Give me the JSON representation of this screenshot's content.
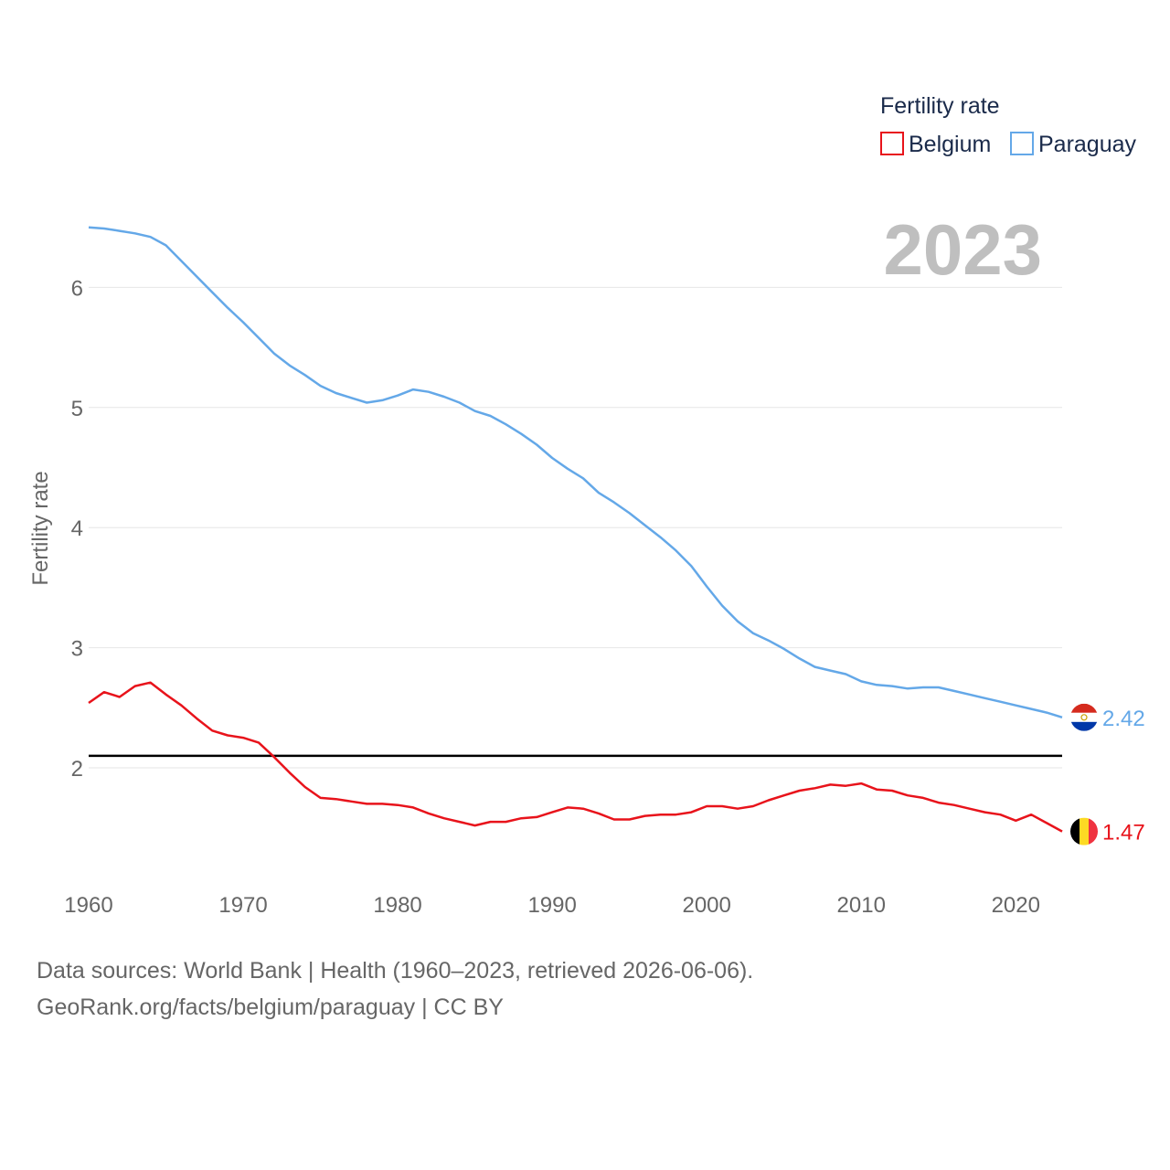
{
  "chart_data": {
    "type": "line",
    "title": "",
    "year_label": "2023",
    "xlabel": "",
    "ylabel": "Fertility rate",
    "xlim": [
      1960,
      2023
    ],
    "ylim": [
      1.0,
      6.6
    ],
    "x_ticks": [
      1960,
      1970,
      1980,
      1990,
      2000,
      2010,
      2020
    ],
    "y_ticks": [
      2,
      3,
      4,
      5,
      6
    ],
    "grid": true,
    "legend": {
      "title": "Fertility rate",
      "position": "top-right",
      "entries": [
        "Belgium",
        "Paraguay"
      ]
    },
    "reference_line": {
      "value": 2.1
    },
    "x": [
      1960,
      1961,
      1962,
      1963,
      1964,
      1965,
      1966,
      1967,
      1968,
      1969,
      1970,
      1971,
      1972,
      1973,
      1974,
      1975,
      1976,
      1977,
      1978,
      1979,
      1980,
      1981,
      1982,
      1983,
      1984,
      1985,
      1986,
      1987,
      1988,
      1989,
      1990,
      1991,
      1992,
      1993,
      1994,
      1995,
      1996,
      1997,
      1998,
      1999,
      2000,
      2001,
      2002,
      2003,
      2004,
      2005,
      2006,
      2007,
      2008,
      2009,
      2010,
      2011,
      2012,
      2013,
      2014,
      2015,
      2016,
      2017,
      2018,
      2019,
      2020,
      2021,
      2022,
      2023
    ],
    "series": [
      {
        "name": "Belgium",
        "color": "#e8131b",
        "end_label": "1.47",
        "flag": "belgium-flag",
        "values": [
          2.54,
          2.63,
          2.59,
          2.68,
          2.71,
          2.61,
          2.52,
          2.41,
          2.31,
          2.27,
          2.25,
          2.21,
          2.09,
          1.96,
          1.84,
          1.75,
          1.74,
          1.72,
          1.7,
          1.7,
          1.69,
          1.67,
          1.62,
          1.58,
          1.55,
          1.52,
          1.55,
          1.55,
          1.58,
          1.59,
          1.63,
          1.67,
          1.66,
          1.62,
          1.57,
          1.57,
          1.6,
          1.61,
          1.61,
          1.63,
          1.68,
          1.68,
          1.66,
          1.68,
          1.73,
          1.77,
          1.81,
          1.83,
          1.86,
          1.85,
          1.87,
          1.82,
          1.81,
          1.77,
          1.75,
          1.71,
          1.69,
          1.66,
          1.63,
          1.61,
          1.56,
          1.61,
          1.54,
          1.47
        ]
      },
      {
        "name": "Paraguay",
        "color": "#64a8e8",
        "end_label": "2.42",
        "flag": "paraguay-flag",
        "values": [
          6.5,
          6.49,
          6.47,
          6.45,
          6.42,
          6.35,
          6.22,
          6.09,
          5.96,
          5.83,
          5.71,
          5.58,
          5.45,
          5.35,
          5.27,
          5.18,
          5.12,
          5.08,
          5.04,
          5.06,
          5.1,
          5.15,
          5.13,
          5.09,
          5.04,
          4.97,
          4.93,
          4.86,
          4.78,
          4.69,
          4.58,
          4.49,
          4.41,
          4.29,
          4.21,
          4.12,
          4.02,
          3.92,
          3.81,
          3.68,
          3.51,
          3.35,
          3.22,
          3.12,
          3.06,
          2.99,
          2.91,
          2.84,
          2.81,
          2.78,
          2.72,
          2.69,
          2.68,
          2.66,
          2.67,
          2.67,
          2.64,
          2.61,
          2.58,
          2.55,
          2.52,
          2.49,
          2.46,
          2.42
        ]
      }
    ]
  },
  "footer": {
    "line1": "Data sources: World Bank | Health (1960–2023, retrieved 2026-06-06).",
    "line2": "GeoRank.org/facts/belgium/paraguay | CC BY"
  }
}
